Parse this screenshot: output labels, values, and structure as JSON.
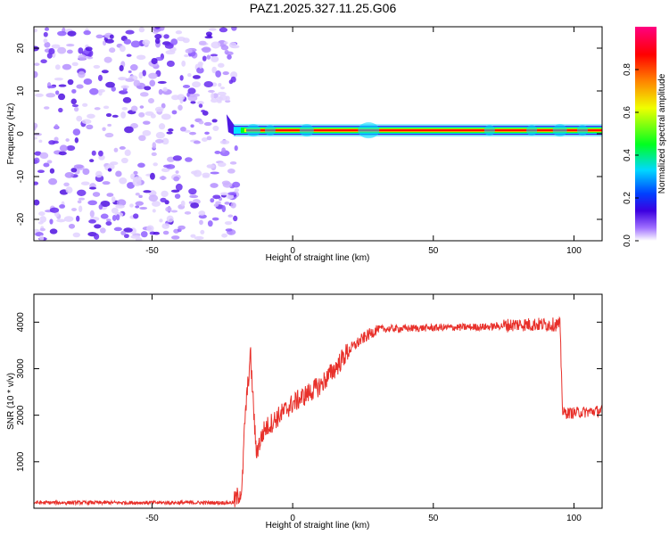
{
  "figure": {
    "title": "PAZ1.2025.327.11.25.G06"
  },
  "chart_data": [
    {
      "type": "heatmap",
      "name": "spectrogram",
      "xlabel": "Height of straight line (km)",
      "ylabel": "Frequency (Hz)",
      "xlim": [
        -92,
        110
      ],
      "ylim": [
        -25,
        25
      ],
      "xticks": [
        -50,
        0,
        50,
        100
      ],
      "yticks": [
        -20,
        -10,
        0,
        10,
        20
      ],
      "noise_region_x": [
        -92,
        -21
      ],
      "signal_region_x": [
        -21,
        110
      ],
      "signal_freq_hz": 0.8,
      "colorbar": {
        "label": "Normalized spectral amplitude",
        "range": [
          0.0,
          1.0
        ],
        "ticks": [
          "0.0",
          "0.2",
          "0.4",
          "0.6",
          "0.8"
        ],
        "colors": [
          "#ffffff",
          "#a070ff",
          "#3c00e0",
          "#0040ff",
          "#00d8ff",
          "#00ff20",
          "#f0ff00",
          "#ff8000",
          "#ff0000",
          "#ff0080"
        ]
      }
    },
    {
      "type": "line",
      "name": "snr",
      "xlabel": "Height of straight line (km)",
      "ylabel": "SNR (10 * v/v)",
      "xlim": [
        -92,
        110
      ],
      "ylim": [
        0,
        4600
      ],
      "xticks": [
        -50,
        0,
        50,
        100
      ],
      "yticks": [
        1000,
        2000,
        3000,
        4000
      ],
      "color": "#e8302a",
      "profile": [
        {
          "x": -92,
          "y": 120
        },
        {
          "x": -21,
          "y": 120
        },
        {
          "x": -18,
          "y": 400
        },
        {
          "x": -17,
          "y": 1900
        },
        {
          "x": -15,
          "y": 3300
        },
        {
          "x": -13,
          "y": 1200
        },
        {
          "x": -10,
          "y": 1700
        },
        {
          "x": 0,
          "y": 2250
        },
        {
          "x": 10,
          "y": 2650
        },
        {
          "x": 15,
          "y": 3000
        },
        {
          "x": 20,
          "y": 3400
        },
        {
          "x": 25,
          "y": 3650
        },
        {
          "x": 30,
          "y": 3850
        },
        {
          "x": 50,
          "y": 3880
        },
        {
          "x": 70,
          "y": 3900
        },
        {
          "x": 80,
          "y": 3950
        },
        {
          "x": 95,
          "y": 3950
        },
        {
          "x": 96,
          "y": 2050
        },
        {
          "x": 100,
          "y": 2050
        },
        {
          "x": 110,
          "y": 2100
        }
      ]
    }
  ]
}
